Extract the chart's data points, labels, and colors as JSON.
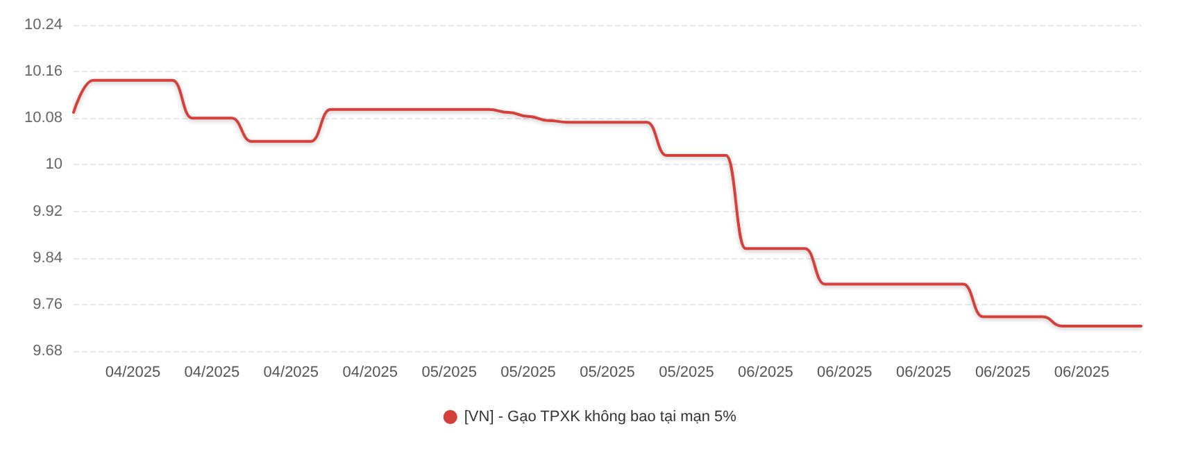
{
  "chart_data": {
    "type": "line",
    "categories": [
      null,
      null,
      null,
      "04/2025",
      null,
      null,
      null,
      "04/2025",
      null,
      null,
      null,
      "04/2025",
      null,
      null,
      null,
      "04/2025",
      null,
      null,
      null,
      "05/2025",
      null,
      null,
      null,
      "05/2025",
      null,
      null,
      null,
      "05/2025",
      null,
      null,
      null,
      "05/2025",
      null,
      null,
      null,
      "06/2025",
      null,
      null,
      null,
      "06/2025",
      null,
      null,
      null,
      "06/2025",
      null,
      null,
      null,
      "06/2025",
      null,
      null,
      null,
      "06/2025",
      null,
      null,
      null
    ],
    "series": [
      {
        "name": "[VN] - Gạo TPXK không bao tại mạn 5%",
        "color": "#d43f3a",
        "values": [
          10.09,
          10.145,
          10.145,
          10.145,
          10.145,
          10.145,
          10.08,
          10.08,
          10.08,
          10.04,
          10.04,
          10.04,
          10.04,
          10.095,
          10.095,
          10.095,
          10.095,
          10.095,
          10.095,
          10.095,
          10.095,
          10.095,
          10.09,
          10.083,
          10.076,
          10.073,
          10.073,
          10.073,
          10.073,
          10.073,
          10.016,
          10.016,
          10.016,
          10.016,
          9.856,
          9.856,
          9.856,
          9.856,
          9.795,
          9.795,
          9.795,
          9.795,
          9.795,
          9.795,
          9.795,
          9.795,
          9.739,
          9.739,
          9.739,
          9.739,
          9.723,
          9.723,
          9.723,
          9.723,
          9.723
        ]
      }
    ],
    "ylim": [
      9.68,
      10.24
    ],
    "yticks": [
      9.68,
      9.76,
      9.84,
      9.92,
      10,
      10.08,
      10.16,
      10.24
    ],
    "grid": "y",
    "legend": "bottom",
    "marker": "none",
    "line_style": "solid"
  }
}
